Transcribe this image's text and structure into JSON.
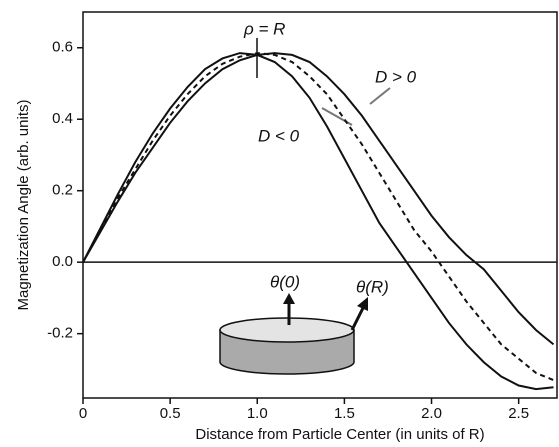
{
  "chart_data": {
    "type": "line",
    "x_label": "Distance from Particle Center (in units of R)",
    "y_label": "Magnetization Angle (arb. units)",
    "annotations": [
      "ρ = R",
      "θ(0)",
      "θ(R)"
    ],
    "x": [
      0,
      0.1,
      0.2,
      0.3,
      0.4,
      0.5,
      0.6,
      0.7,
      0.8,
      0.9,
      1.0,
      1.1,
      1.2,
      1.3,
      1.4,
      1.5,
      1.6,
      1.7,
      1.8,
      1.9,
      2.0,
      2.1,
      2.2,
      2.3,
      2.4,
      2.5,
      2.6,
      2.7
    ],
    "series": [
      {
        "name": "D < 0",
        "color": "#111111",
        "dashed": false,
        "values": [
          0,
          0.095,
          0.19,
          0.28,
          0.36,
          0.43,
          0.49,
          0.54,
          0.57,
          0.585,
          0.58,
          0.56,
          0.52,
          0.46,
          0.38,
          0.29,
          0.2,
          0.11,
          0.04,
          -0.03,
          -0.1,
          -0.17,
          -0.23,
          -0.28,
          -0.32,
          -0.345,
          -0.355,
          -0.35
        ]
      },
      {
        "color": "#111111",
        "dashed": true,
        "values": [
          0,
          0.09,
          0.18,
          0.26,
          0.34,
          0.41,
          0.47,
          0.52,
          0.555,
          0.575,
          0.585,
          0.58,
          0.56,
          0.52,
          0.47,
          0.4,
          0.33,
          0.25,
          0.17,
          0.09,
          0.03,
          -0.04,
          -0.11,
          -0.17,
          -0.23,
          -0.27,
          -0.31,
          -0.33
        ]
      },
      {
        "name": "D > 0",
        "color": "#111111",
        "dashed": false,
        "values": [
          0,
          0.085,
          0.17,
          0.25,
          0.32,
          0.39,
          0.45,
          0.5,
          0.54,
          0.565,
          0.58,
          0.585,
          0.58,
          0.56,
          0.52,
          0.47,
          0.41,
          0.34,
          0.27,
          0.2,
          0.13,
          0.07,
          0.02,
          -0.02,
          -0.08,
          -0.14,
          -0.19,
          -0.23
        ]
      }
    ],
    "xlim": [
      0,
      2.72
    ],
    "ylim": [
      -0.38,
      0.7
    ],
    "xticks": [
      0,
      0.5,
      {
        "value": 1,
        "label": "1.0"
      },
      1.5,
      {
        "value": 2,
        "label": "2.0"
      },
      2.5
    ],
    "yticks": [
      -0.2,
      {
        "value": 0,
        "label": "0.0"
      },
      0.2,
      0.4,
      0.6
    ],
    "zero_line": true,
    "grid": false
  }
}
